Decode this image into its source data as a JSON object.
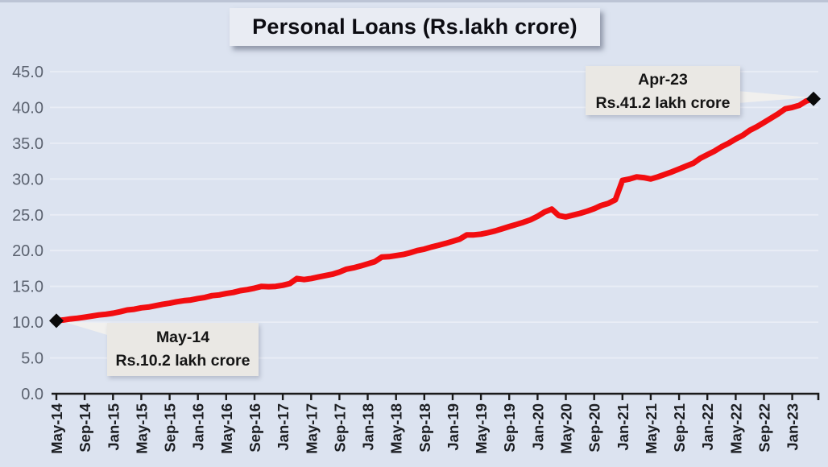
{
  "title": "Personal Loans (Rs.lakh crore)",
  "colors": {
    "background": "#dce3f0",
    "top_edge": "#bcc4d5",
    "line": "#f20d10",
    "marker": "#0a0a0a",
    "axis": "#1a1a1a",
    "grid": "#e9edf6",
    "y_label": "#5c6370",
    "x_label": "#1c1e22",
    "title_bg": "#e9ecf3",
    "callout_bg": "#eae8e4",
    "leader": "#f2f1ee"
  },
  "annotations": [
    {
      "id": "start-callout",
      "line1": "May-14",
      "line2": "Rs.10.2 lakh crore"
    },
    {
      "id": "end-callout",
      "line1": "Apr-23",
      "line2": "Rs.41.2 lakh crore"
    }
  ],
  "chart_data": {
    "type": "line",
    "title": "Personal Loans (Rs.lakh crore)",
    "xlabel": "",
    "ylabel": "",
    "ylim": [
      0,
      45
    ],
    "ytick_step": 5,
    "ytick_format_decimals": 1,
    "grid": true,
    "legend": false,
    "line_width": 7,
    "marker_style": "black diamond on first and last point",
    "x_tick_labels": [
      "May-14",
      "Sep-14",
      "Jan-15",
      "May-15",
      "Sep-15",
      "Jan-16",
      "May-16",
      "Sep-16",
      "Jan-17",
      "May-17",
      "Sep-17",
      "Jan-18",
      "May-18",
      "Sep-18",
      "Jan-19",
      "May-19",
      "Sep-19",
      "Jan-20",
      "May-20",
      "Sep-20",
      "Jan-21",
      "May-21",
      "Sep-21",
      "Jan-22",
      "May-22",
      "Sep-22",
      "Jan-23"
    ],
    "x": [
      "May-14",
      "Jun-14",
      "Jul-14",
      "Aug-14",
      "Sep-14",
      "Oct-14",
      "Nov-14",
      "Dec-14",
      "Jan-15",
      "Feb-15",
      "Mar-15",
      "Apr-15",
      "May-15",
      "Jun-15",
      "Jul-15",
      "Aug-15",
      "Sep-15",
      "Oct-15",
      "Nov-15",
      "Dec-15",
      "Jan-16",
      "Feb-16",
      "Mar-16",
      "Apr-16",
      "May-16",
      "Jun-16",
      "Jul-16",
      "Aug-16",
      "Sep-16",
      "Oct-16",
      "Nov-16",
      "Dec-16",
      "Jan-17",
      "Feb-17",
      "Mar-17",
      "Apr-17",
      "May-17",
      "Jun-17",
      "Jul-17",
      "Aug-17",
      "Sep-17",
      "Oct-17",
      "Nov-17",
      "Dec-17",
      "Jan-18",
      "Feb-18",
      "Mar-18",
      "Apr-18",
      "May-18",
      "Jun-18",
      "Jul-18",
      "Aug-18",
      "Sep-18",
      "Oct-18",
      "Nov-18",
      "Dec-18",
      "Jan-19",
      "Feb-19",
      "Mar-19",
      "Apr-19",
      "May-19",
      "Jun-19",
      "Jul-19",
      "Aug-19",
      "Sep-19",
      "Oct-19",
      "Nov-19",
      "Dec-19",
      "Jan-20",
      "Feb-20",
      "Mar-20",
      "Apr-20",
      "May-20",
      "Jun-20",
      "Jul-20",
      "Aug-20",
      "Sep-20",
      "Oct-20",
      "Nov-20",
      "Dec-20",
      "Jan-21",
      "Feb-21",
      "Mar-21",
      "Apr-21",
      "May-21",
      "Jun-21",
      "Jul-21",
      "Aug-21",
      "Sep-21",
      "Oct-21",
      "Nov-21",
      "Dec-21",
      "Jan-22",
      "Feb-22",
      "Mar-22",
      "Apr-22",
      "May-22",
      "Jun-22",
      "Jul-22",
      "Aug-22",
      "Sep-22",
      "Oct-22",
      "Nov-22",
      "Dec-22",
      "Jan-23",
      "Feb-23",
      "Mar-23",
      "Apr-23"
    ],
    "values": [
      10.2,
      10.3,
      10.45,
      10.55,
      10.7,
      10.85,
      11.0,
      11.1,
      11.25,
      11.45,
      11.7,
      11.8,
      12.0,
      12.1,
      12.3,
      12.5,
      12.65,
      12.85,
      13.0,
      13.1,
      13.3,
      13.45,
      13.7,
      13.8,
      14.0,
      14.15,
      14.4,
      14.55,
      14.75,
      15.0,
      14.95,
      15.0,
      15.15,
      15.4,
      16.1,
      15.95,
      16.1,
      16.3,
      16.5,
      16.7,
      17.0,
      17.4,
      17.6,
      17.85,
      18.15,
      18.45,
      19.1,
      19.15,
      19.3,
      19.45,
      19.7,
      20.0,
      20.2,
      20.5,
      20.75,
      21.0,
      21.3,
      21.6,
      22.2,
      22.2,
      22.3,
      22.5,
      22.75,
      23.05,
      23.35,
      23.65,
      23.95,
      24.3,
      24.8,
      25.4,
      25.8,
      24.9,
      24.7,
      24.95,
      25.2,
      25.5,
      25.85,
      26.3,
      26.6,
      27.1,
      29.8,
      30.0,
      30.3,
      30.2,
      30.0,
      30.3,
      30.65,
      31.0,
      31.4,
      31.8,
      32.2,
      32.9,
      33.4,
      33.9,
      34.5,
      35.0,
      35.6,
      36.1,
      36.8,
      37.3,
      37.9,
      38.5,
      39.1,
      39.8,
      40.0,
      40.3,
      40.9,
      41.2
    ],
    "start_point": {
      "x": "May-14",
      "value": 10.2
    },
    "end_point": {
      "x": "Apr-23",
      "value": 41.2
    }
  }
}
